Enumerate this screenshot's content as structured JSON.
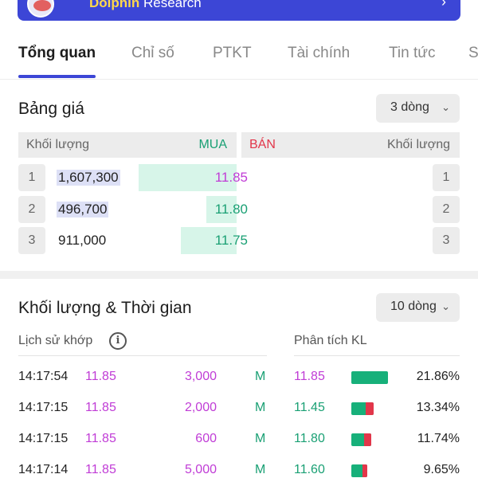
{
  "banner": {
    "title_highlight": "Dolphin",
    "title_rest": " Research"
  },
  "tabs": [
    "Tổng quan",
    "Chỉ số",
    "PTKT",
    "Tài chính",
    "Tin tức",
    "S"
  ],
  "order_book": {
    "title": "Bảng giá",
    "dropdown": "3 dòng",
    "headers": {
      "vol_left": "Khối lượng",
      "buy": "MUA",
      "sell": "BÁN",
      "vol_right": "Khối lượng"
    },
    "rows": [
      {
        "idx": "1",
        "volume": "1,607,300",
        "price": "11.85",
        "bid_fill": 0.97
      },
      {
        "idx": "2",
        "volume": "496,700",
        "price": "11.80",
        "bid_fill": 0.3
      },
      {
        "idx": "3",
        "volume": "911,000",
        "price": "11.75",
        "bid_fill": 0.55
      }
    ]
  },
  "volume_time": {
    "title": "Khối lượng & Thời gian",
    "dropdown": "10 dòng",
    "history_label": "Lịch sử khớp",
    "analysis_label": "Phân tích KL",
    "trades": [
      {
        "time": "14:17:54",
        "price": "11.85",
        "volume": "3,000",
        "side": "M"
      },
      {
        "time": "14:17:15",
        "price": "11.85",
        "volume": "2,000",
        "side": "M"
      },
      {
        "time": "14:17:15",
        "price": "11.85",
        "volume": "600",
        "side": "M"
      },
      {
        "time": "14:17:14",
        "price": "11.85",
        "volume": "5,000",
        "side": "M"
      }
    ],
    "analysis": [
      {
        "price": "11.85",
        "pct": "21.86%",
        "bar_fill": 1.0,
        "sell_fill": 0.0
      },
      {
        "price": "11.45",
        "pct": "13.34%",
        "bar_fill": 0.61,
        "sell_fill": 0.35
      },
      {
        "price": "11.80",
        "pct": "11.74%",
        "bar_fill": 0.54,
        "sell_fill": 0.35
      },
      {
        "price": "11.60",
        "pct": "9.65%",
        "bar_fill": 0.44,
        "sell_fill": 0.3
      }
    ]
  },
  "colors": {
    "accent": "#3c46d6",
    "buy": "#1aa074",
    "sell": "#e2364a",
    "price": "#c03cd6",
    "bid_bg": "#d7f5e9"
  },
  "icons": {
    "banner_arrow": "chevron-right-icon",
    "dropdown": "chevron-down-icon",
    "info": "info-icon"
  }
}
